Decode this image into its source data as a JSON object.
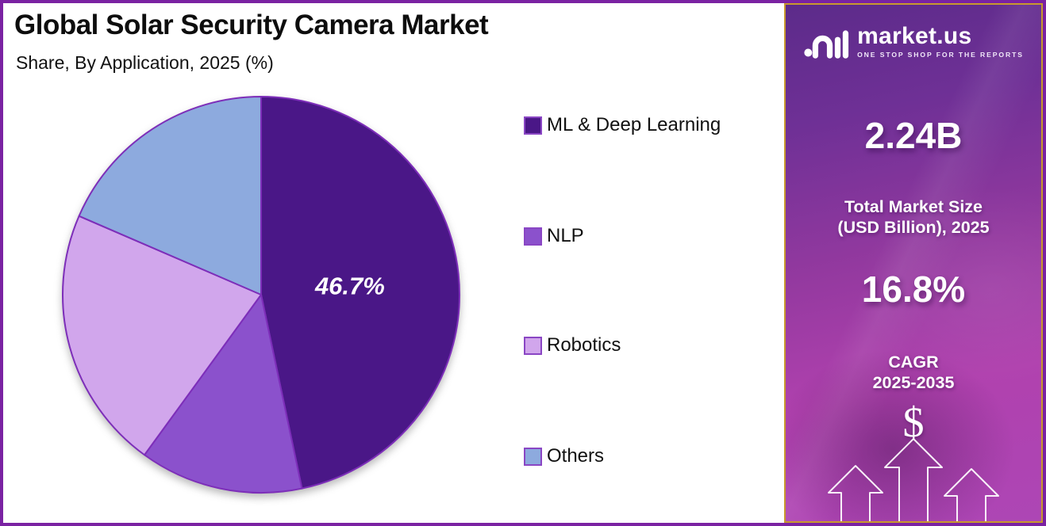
{
  "header": {
    "title": "Global Solar Security Camera Market",
    "subtitle": "Share, By Application, 2025 (%)"
  },
  "chart_data": {
    "type": "pie",
    "title": "Global Solar Security Camera Market",
    "subtitle": "Share, By Application, 2025 (%)",
    "unit": "%",
    "legend_position": "right",
    "start_angle_deg": 0,
    "direction": "clockwise",
    "stroke_color": "#7d2eb9",
    "slices": [
      {
        "label": "ML & Deep Learning",
        "value": 46.7,
        "display_label": "46.7%",
        "label_visible": true,
        "color": "#4a1787"
      },
      {
        "label": "NLP",
        "value": 13.3,
        "display_label": "",
        "label_visible": false,
        "color": "#8b51cc"
      },
      {
        "label": "Robotics",
        "value": 21.5,
        "display_label": "",
        "label_visible": false,
        "color": "#d1a6ec"
      },
      {
        "label": "Others",
        "value": 18.5,
        "display_label": "",
        "label_visible": false,
        "color": "#8daade"
      }
    ]
  },
  "sidebar": {
    "logo": {
      "brand": "market.us",
      "tagline": "ONE STOP SHOP FOR THE REPORTS"
    },
    "market_size_value": "2.24B",
    "market_size_label_line1": "Total Market Size",
    "market_size_label_line2": "(USD Billion), 2025",
    "cagr_value": "16.8%",
    "cagr_label_line1": "CAGR",
    "cagr_label_line2": "2025-2035",
    "currency_symbol": "$"
  },
  "colors": {
    "frame_border": "#7a22a2",
    "sidebar_border_gold": "#c8992e",
    "pie_stroke": "#7d2eb9",
    "legend_swatch_border": "#8a46c4",
    "sidebar_gradient_top": "#5c2b8a",
    "sidebar_gradient_bottom": "#ad46b5"
  }
}
